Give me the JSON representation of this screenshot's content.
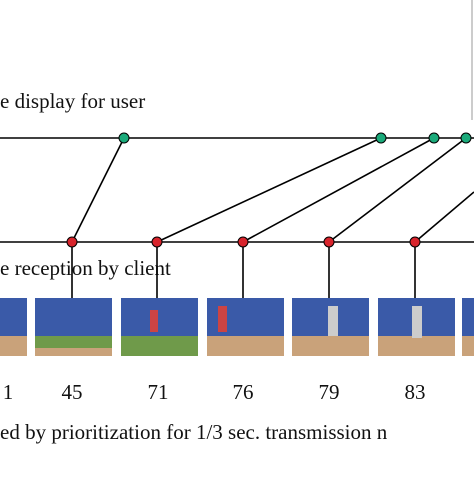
{
  "labels": {
    "display": "e display for user",
    "reception": "e reception by client"
  },
  "frames": [
    "1",
    "45",
    "71",
    "76",
    "79",
    "83"
  ],
  "caption": "ed by prioritization for 1/3 sec. transmission n"
}
